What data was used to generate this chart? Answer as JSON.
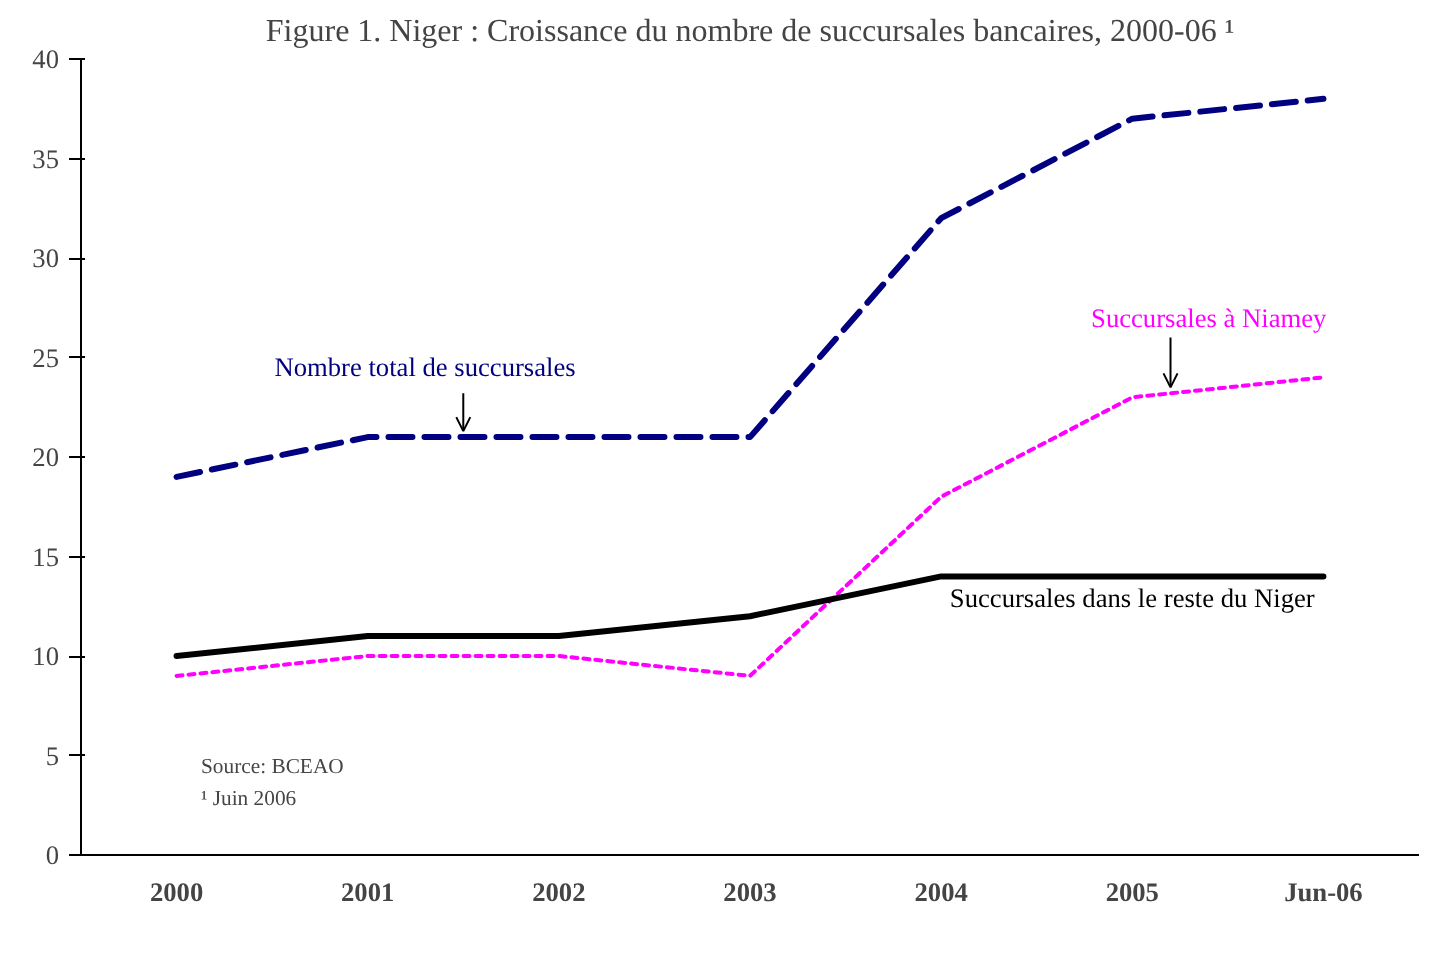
{
  "chart_data": {
    "type": "line",
    "title": "Figure 1. Niger : Croissance du nombre de succursales bancaires, 2000-06 ¹",
    "categories": [
      "2000",
      "2001",
      "2002",
      "2003",
      "2004",
      "2005",
      "Jun-06"
    ],
    "series": [
      {
        "name": "Nombre total de succursales",
        "color": "#000080",
        "line_style": "dashed",
        "values": [
          19,
          21,
          21,
          21,
          32,
          37,
          38
        ]
      },
      {
        "name": "Succursales à Niamey",
        "color": "#ff00ff",
        "line_style": "dotted",
        "values": [
          9,
          10,
          10,
          9,
          18,
          23,
          24
        ]
      },
      {
        "name": "Succursales dans le reste du Niger",
        "color": "#000000",
        "line_style": "solid",
        "values": [
          10,
          11,
          11,
          12,
          14,
          14,
          14
        ]
      }
    ],
    "ylim": [
      0,
      40
    ],
    "yticks": [
      0,
      5,
      10,
      15,
      20,
      25,
      30,
      35,
      40
    ],
    "grid": false,
    "marker": "none",
    "annotations": [
      "Source: BCEAO",
      "¹ Juin 2006"
    ]
  }
}
